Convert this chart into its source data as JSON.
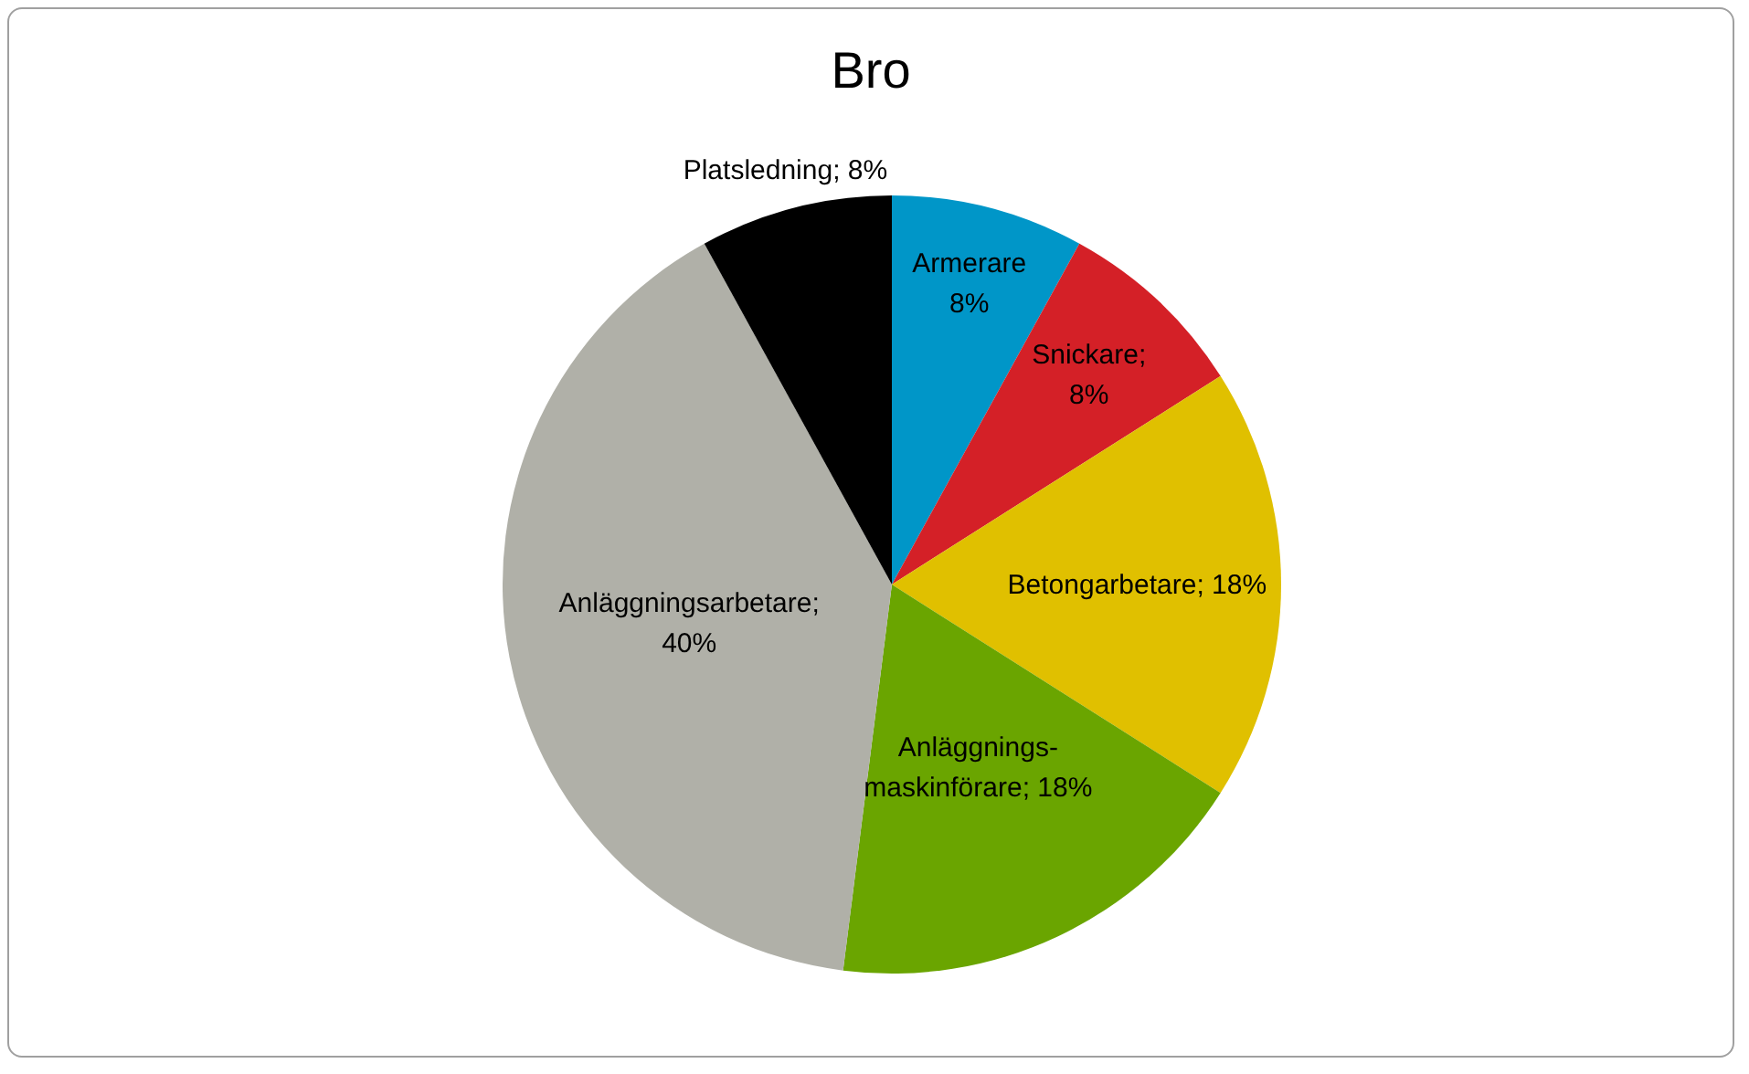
{
  "chart_data": {
    "type": "pie",
    "title": "Bro",
    "categories": [
      "Armerare",
      "Snickare",
      "Betongarbetare",
      "Anläggnings-maskinförare",
      "Anläggningsarbetare",
      "Platsledning"
    ],
    "values": [
      8,
      8,
      18,
      18,
      40,
      8
    ],
    "value_labels": [
      "8%",
      "; 8%",
      "; 18%",
      "; 18%",
      "; 40%",
      "; 8%"
    ],
    "colors": [
      "#0096c8",
      "#d42027",
      "#e0c000",
      "#6aa500",
      "#b0b0a8",
      "#000000"
    ],
    "legend": false
  }
}
